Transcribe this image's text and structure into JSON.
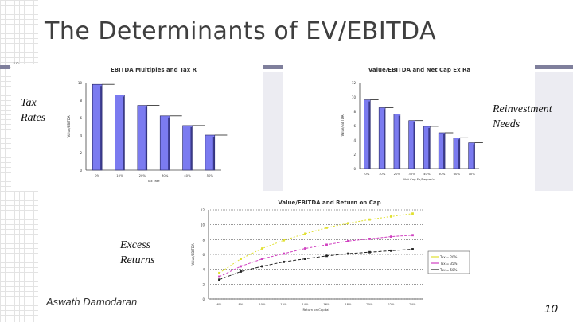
{
  "slide": {
    "title": "The Determinants of EV/EBITDA",
    "page_number": "10",
    "small_number": "10",
    "footer": "Aswath Damodaran",
    "labels": {
      "tax": [
        "Tax",
        "Rates"
      ],
      "reinvestment": [
        "Reinvestment",
        "Needs"
      ],
      "excess": [
        "Excess",
        "Returns"
      ]
    },
    "colors": {
      "bar_fill": "#7b7bf0",
      "bar_edge": "#22225a",
      "series_high": "#e0e030",
      "series_mid": "#d040c0",
      "series_low": "#222222"
    }
  },
  "chart_data": [
    {
      "type": "bar",
      "title": "EBITDA Multiples and Tax R",
      "ylabel": "Value/EBITDA",
      "xlabel": "Tax rate",
      "categories": [
        "0%",
        "10%",
        "20%",
        "30%",
        "40%",
        "50%"
      ],
      "values": [
        9.8,
        8.6,
        7.4,
        6.2,
        5.1,
        4.0
      ],
      "ylim": [
        0,
        10
      ],
      "yticks": [
        "0",
        "2",
        "4",
        "6",
        "8",
        "10"
      ]
    },
    {
      "type": "bar",
      "title": "Value/EBITDA and Net Cap Ex Ra",
      "ylabel": "Value/EBITDA",
      "xlabel": "Net Cap Ex/Deprec'n",
      "categories": [
        "0%",
        "10%",
        "20%",
        "30%",
        "40%",
        "50%",
        "60%",
        "70%"
      ],
      "values": [
        9.6,
        8.5,
        7.6,
        6.7,
        5.9,
        5.0,
        4.3,
        3.6
      ],
      "ylim": [
        0,
        12
      ],
      "yticks": [
        "0",
        "2",
        "4",
        "6",
        "8",
        "10",
        "12"
      ]
    },
    {
      "type": "line",
      "title": "Value/EBITDA and Return on Cap",
      "ylabel": "Value/EBITDA",
      "xlabel": "Return on Capital",
      "x": [
        "6%",
        "8%",
        "10%",
        "12%",
        "14%",
        "16%",
        "18%",
        "20%",
        "22%",
        "24%"
      ],
      "ylim": [
        0,
        12
      ],
      "yticks": [
        "0",
        "2",
        "4",
        "6",
        "8",
        "10",
        "12"
      ],
      "legend": [
        "Tax = 20%",
        "Tax = 35%",
        "Tax = 50%"
      ],
      "series": [
        {
          "name": "Tax = 20%",
          "values": [
            3.5,
            5.4,
            6.8,
            7.9,
            8.8,
            9.6,
            10.2,
            10.7,
            11.1,
            11.5
          ]
        },
        {
          "name": "Tax = 35%",
          "values": [
            3.0,
            4.4,
            5.4,
            6.1,
            6.8,
            7.3,
            7.8,
            8.1,
            8.4,
            8.6
          ]
        },
        {
          "name": "Tax = 50%",
          "values": [
            2.6,
            3.7,
            4.4,
            5.0,
            5.4,
            5.8,
            6.1,
            6.3,
            6.5,
            6.7
          ]
        }
      ]
    }
  ]
}
